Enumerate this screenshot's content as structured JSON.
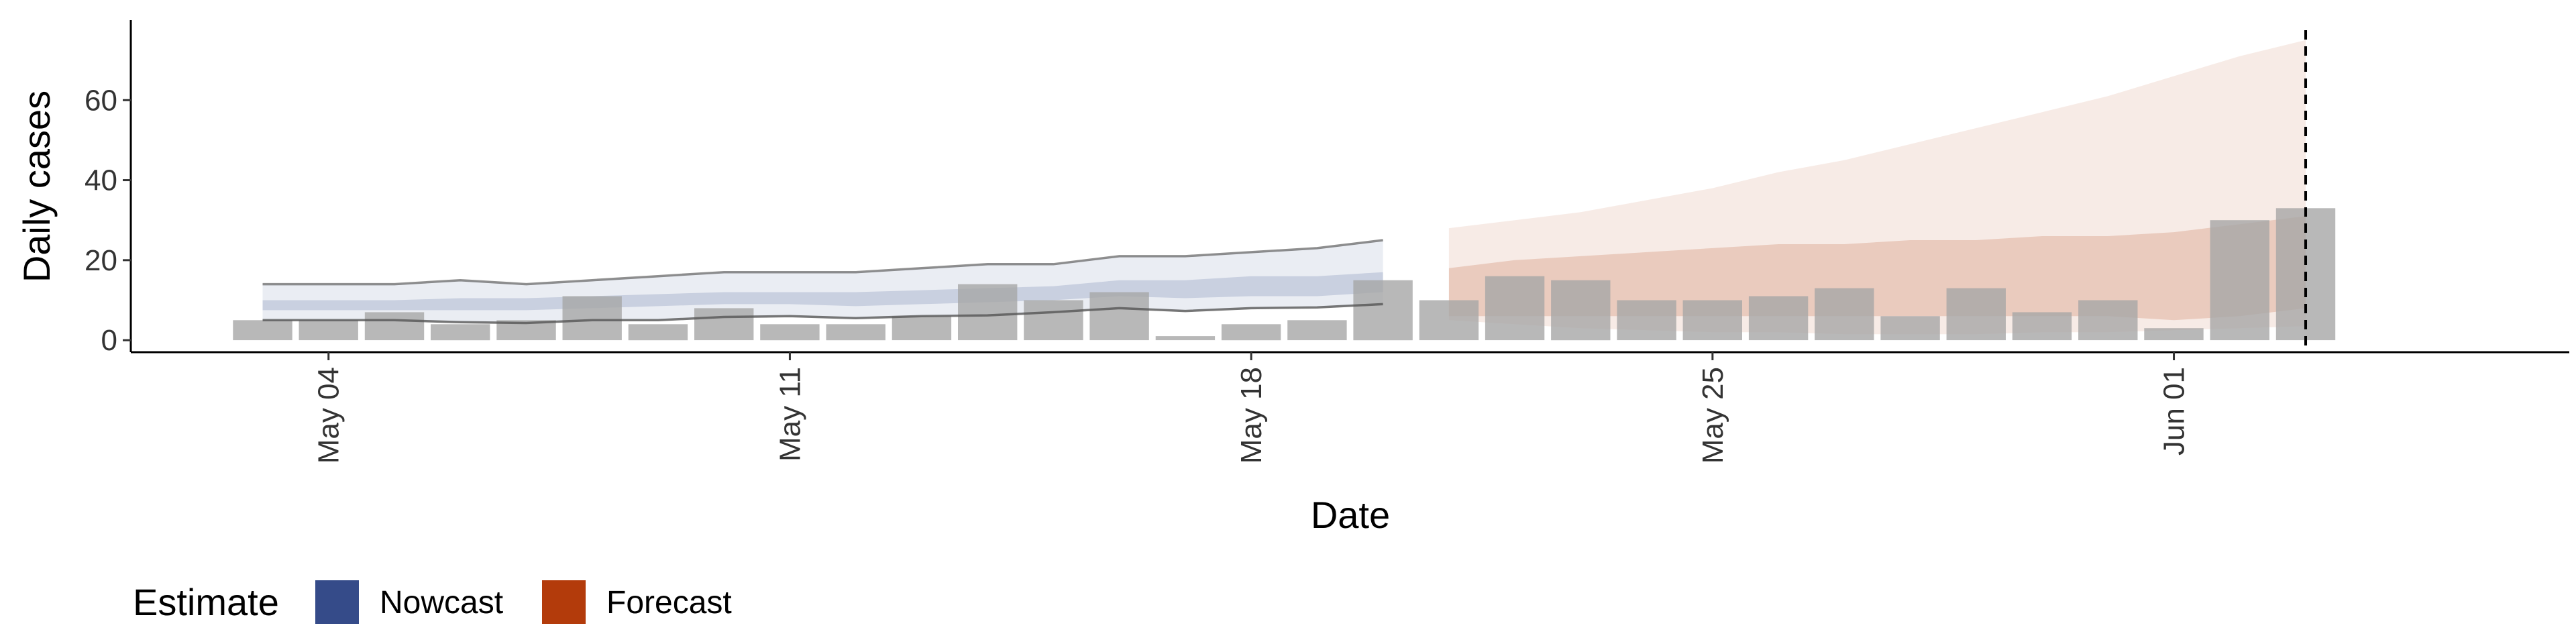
{
  "chart_data": {
    "type": "bar",
    "xlabel": "Date",
    "ylabel": "Daily cases",
    "ylim": [
      -3,
      80
    ],
    "yticks": [
      0,
      20,
      40,
      60
    ],
    "xlim": [
      "2020-05-01",
      "2020-06-07"
    ],
    "xticks": [
      {
        "date": "2020-05-04",
        "label": "May 04"
      },
      {
        "date": "2020-05-11",
        "label": "May 11"
      },
      {
        "date": "2020-05-18",
        "label": "May 18"
      },
      {
        "date": "2020-05-25",
        "label": "May 25"
      },
      {
        "date": "2020-06-01",
        "label": "Jun 01"
      }
    ],
    "grid": false,
    "bars": {
      "dates": [
        "2020-05-03",
        "2020-05-04",
        "2020-05-05",
        "2020-05-06",
        "2020-05-07",
        "2020-05-08",
        "2020-05-09",
        "2020-05-10",
        "2020-05-11",
        "2020-05-12",
        "2020-05-13",
        "2020-05-14",
        "2020-05-15",
        "2020-05-16",
        "2020-05-17",
        "2020-05-18",
        "2020-05-19",
        "2020-05-20",
        "2020-05-21",
        "2020-05-22",
        "2020-05-23",
        "2020-05-24",
        "2020-05-25",
        "2020-05-26",
        "2020-05-27",
        "2020-05-28",
        "2020-05-29",
        "2020-05-30",
        "2020-05-31",
        "2020-06-01",
        "2020-06-02",
        "2020-06-03"
      ],
      "values": [
        5,
        5,
        7,
        4,
        5,
        11,
        4,
        8,
        4,
        4,
        6,
        14,
        10,
        12,
        1,
        4,
        5,
        15,
        10,
        16,
        15,
        10,
        10,
        11,
        13,
        6,
        13,
        7,
        10,
        3,
        30,
        33
      ]
    },
    "nowcast": {
      "dates": [
        "2020-05-03",
        "2020-05-04",
        "2020-05-05",
        "2020-05-06",
        "2020-05-07",
        "2020-05-08",
        "2020-05-09",
        "2020-05-10",
        "2020-05-11",
        "2020-05-12",
        "2020-05-13",
        "2020-05-14",
        "2020-05-15",
        "2020-05-16",
        "2020-05-17",
        "2020-05-18",
        "2020-05-19",
        "2020-05-20"
      ],
      "outer_lower": [
        5,
        5,
        5,
        4.5,
        4.3,
        5,
        5,
        5.8,
        6,
        5.5,
        6,
        6.2,
        7,
        8,
        7.3,
        8,
        8.2,
        9
      ],
      "outer_upper": [
        14,
        14,
        14,
        15,
        14,
        15,
        16,
        17,
        17,
        17,
        18,
        19,
        19,
        21,
        21,
        22,
        23,
        25
      ],
      "inner_lower": [
        7.5,
        7.5,
        7.5,
        7.5,
        7.5,
        8,
        8.5,
        9,
        9,
        8.5,
        9,
        9.5,
        10,
        11,
        10.5,
        11,
        11,
        12
      ],
      "inner_upper": [
        10,
        10,
        10,
        10.5,
        10.5,
        11,
        11.5,
        12,
        12,
        12,
        12.5,
        13,
        13.5,
        15,
        15,
        16,
        16,
        17
      ]
    },
    "forecast": {
      "dates": [
        "2020-05-21",
        "2020-05-22",
        "2020-05-23",
        "2020-05-24",
        "2020-05-25",
        "2020-05-26",
        "2020-05-27",
        "2020-05-28",
        "2020-05-29",
        "2020-05-30",
        "2020-05-31",
        "2020-06-01",
        "2020-06-02",
        "2020-06-03"
      ],
      "outer_lower": [
        5,
        4,
        3,
        2.5,
        2,
        2,
        1.5,
        1.5,
        1.5,
        2,
        2,
        2.5,
        3,
        3.5
      ],
      "outer_upper": [
        28,
        30,
        32,
        35,
        38,
        42,
        45,
        49,
        53,
        57,
        61,
        66,
        71,
        75
      ],
      "inner_lower": [
        6,
        6,
        6,
        6,
        6,
        6,
        6,
        6,
        6,
        6,
        6,
        5,
        6,
        8
      ],
      "inner_upper": [
        18,
        20,
        21,
        22,
        23,
        24,
        24,
        25,
        25,
        26,
        26,
        27,
        29,
        31
      ]
    },
    "vline_date": "2020-06-03",
    "legend": {
      "title": "Estimate",
      "position": "bottom-left",
      "items": [
        {
          "label": "Nowcast",
          "color": "#354b89"
        },
        {
          "label": "Forecast",
          "color": "#b33b0b"
        }
      ]
    },
    "colors": {
      "bar": "#a6a6a6",
      "nowcast": "#354b89",
      "forecast": "#b33b0b",
      "line": "#555555"
    }
  }
}
